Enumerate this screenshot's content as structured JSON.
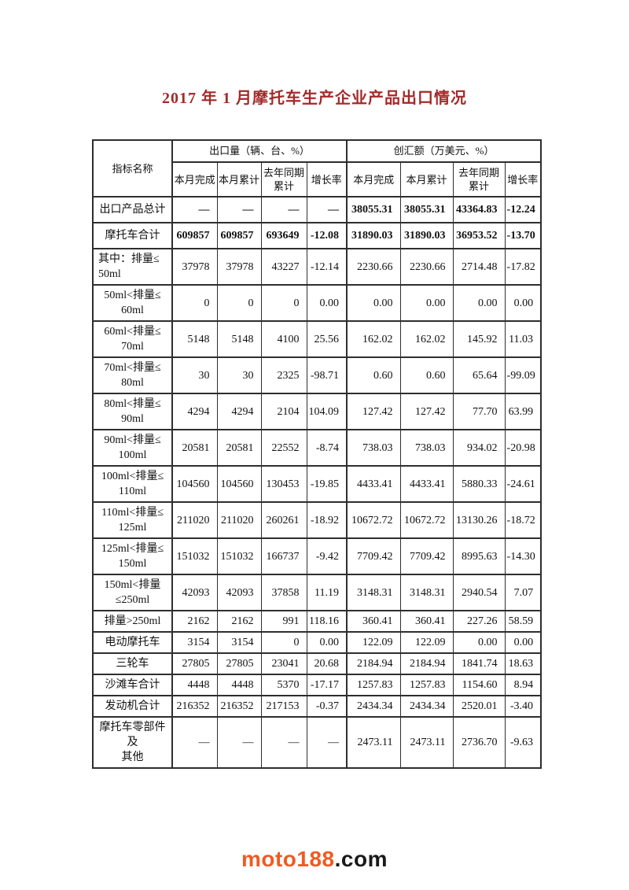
{
  "page": {
    "title": "2017 年 1 月摩托车生产企业产品出口情况",
    "footer": {
      "brand": "moto188",
      "suffix": ".com"
    }
  },
  "colors": {
    "title": "#A52A2A",
    "footer_brand": "#F15A22",
    "footer_suffix": "#1A1A1A",
    "table_border": "#2E2E2E"
  },
  "table": {
    "corner_header": "指标名称",
    "groups": [
      {
        "label": "出口量（辆、台、%）",
        "columns": [
          "本月完成",
          "本月累计",
          "去年同期\n累计",
          "增长率"
        ]
      },
      {
        "label": "创汇额（万美元、%）",
        "columns": [
          "本月完成",
          "本月累计",
          "去年同期\n累计",
          "增长率"
        ]
      }
    ],
    "rows": [
      {
        "label": "出口产品总计",
        "bold": true,
        "values": [
          "—",
          "—",
          "—",
          "—",
          "38055.31",
          "38055.31",
          "43364.83",
          "-12.24"
        ]
      },
      {
        "label": "摩托车合计",
        "bold": true,
        "values": [
          "609857",
          "609857",
          "693649",
          "-12.08",
          "31890.03",
          "31890.03",
          "36953.52",
          "-13.70"
        ]
      },
      {
        "label": "其中：排量≤\n50ml",
        "values": [
          "37978",
          "37978",
          "43227",
          "-12.14",
          "2230.66",
          "2230.66",
          "2714.48",
          "-17.82"
        ]
      },
      {
        "label": "50ml<排量≤\n60ml",
        "values": [
          "0",
          "0",
          "0",
          "0.00",
          "0.00",
          "0.00",
          "0.00",
          "0.00"
        ]
      },
      {
        "label": "60ml<排量≤\n70ml",
        "values": [
          "5148",
          "5148",
          "4100",
          "25.56",
          "162.02",
          "162.02",
          "145.92",
          "11.03"
        ]
      },
      {
        "label": "70ml<排量≤\n80ml",
        "values": [
          "30",
          "30",
          "2325",
          "-98.71",
          "0.60",
          "0.60",
          "65.64",
          "-99.09"
        ]
      },
      {
        "label": "80ml<排量≤\n90ml",
        "values": [
          "4294",
          "4294",
          "2104",
          "104.09",
          "127.42",
          "127.42",
          "77.70",
          "63.99"
        ]
      },
      {
        "label": "90ml<排量≤\n100ml",
        "values": [
          "20581",
          "20581",
          "22552",
          "-8.74",
          "738.03",
          "738.03",
          "934.02",
          "-20.98"
        ]
      },
      {
        "label": "100ml<排量≤\n110ml",
        "values": [
          "104560",
          "104560",
          "130453",
          "-19.85",
          "4433.41",
          "4433.41",
          "5880.33",
          "-24.61"
        ]
      },
      {
        "label": "110ml<排量≤\n125ml",
        "values": [
          "211020",
          "211020",
          "260261",
          "-18.92",
          "10672.72",
          "10672.72",
          "13130.26",
          "-18.72"
        ]
      },
      {
        "label": "125ml<排量≤\n150ml",
        "values": [
          "151032",
          "151032",
          "166737",
          "-9.42",
          "7709.42",
          "7709.42",
          "8995.63",
          "-14.30"
        ]
      },
      {
        "label": "150ml<排量\n≤250ml",
        "values": [
          "42093",
          "42093",
          "37858",
          "11.19",
          "3148.31",
          "3148.31",
          "2940.54",
          "7.07"
        ]
      },
      {
        "label": "排量>250ml",
        "values": [
          "2162",
          "2162",
          "991",
          "118.16",
          "360.41",
          "360.41",
          "227.26",
          "58.59"
        ]
      },
      {
        "label": "电动摩托车",
        "values": [
          "3154",
          "3154",
          "0",
          "0.00",
          "122.09",
          "122.09",
          "0.00",
          "0.00"
        ]
      },
      {
        "label": "三轮车",
        "values": [
          "27805",
          "27805",
          "23041",
          "20.68",
          "2184.94",
          "2184.94",
          "1841.74",
          "18.63"
        ]
      },
      {
        "label": "沙滩车合计",
        "values": [
          "4448",
          "4448",
          "5370",
          "-17.17",
          "1257.83",
          "1257.83",
          "1154.60",
          "8.94"
        ]
      },
      {
        "label": "发动机合计",
        "values": [
          "216352",
          "216352",
          "217153",
          "-0.37",
          "2434.34",
          "2434.34",
          "2520.01",
          "-3.40"
        ]
      },
      {
        "label": "摩托车零部件及\n其他",
        "values": [
          "—",
          "—",
          "—",
          "—",
          "2473.11",
          "2473.11",
          "2736.70",
          "-9.63"
        ]
      }
    ]
  }
}
